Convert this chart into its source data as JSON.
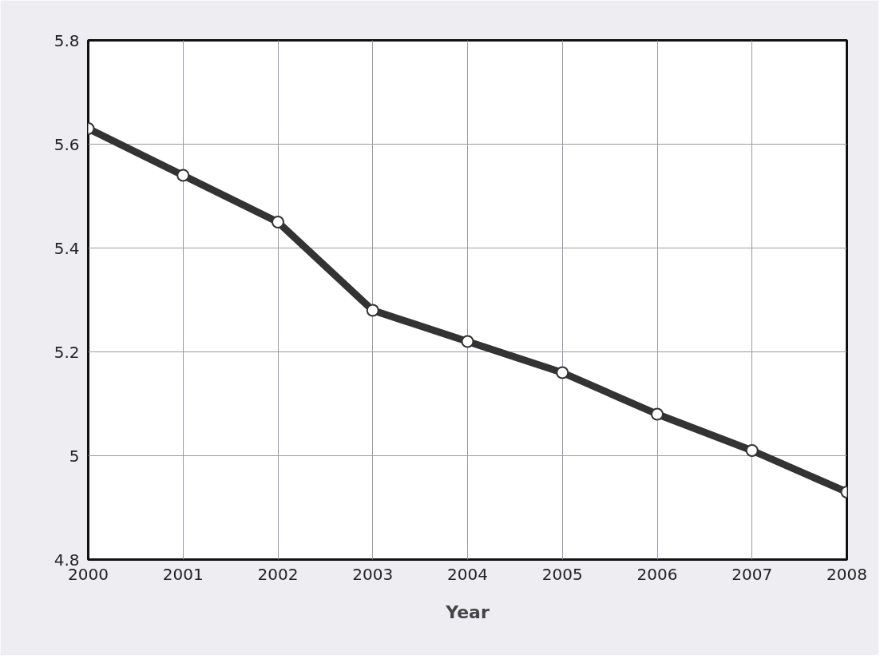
{
  "chart_data": {
    "type": "line",
    "xlabel": "Year",
    "x": [
      2000,
      2001,
      2002,
      2003,
      2004,
      2005,
      2006,
      2007,
      2008
    ],
    "series": [
      {
        "color": "#333333",
        "values": [
          5.63,
          5.54,
          5.45,
          5.28,
          5.22,
          5.16,
          5.08,
          5.01,
          4.93
        ]
      }
    ],
    "xlim": [
      2000,
      2008
    ],
    "xticks": [
      2000,
      2001,
      2002,
      2003,
      2004,
      2005,
      2006,
      2007,
      2008
    ],
    "ylim": [
      4.8,
      5.8
    ],
    "yticks": [
      4.8,
      5,
      5.2,
      5.4,
      5.6,
      5.8
    ],
    "grid": true,
    "marker": "circle",
    "line_style": "solid"
  }
}
